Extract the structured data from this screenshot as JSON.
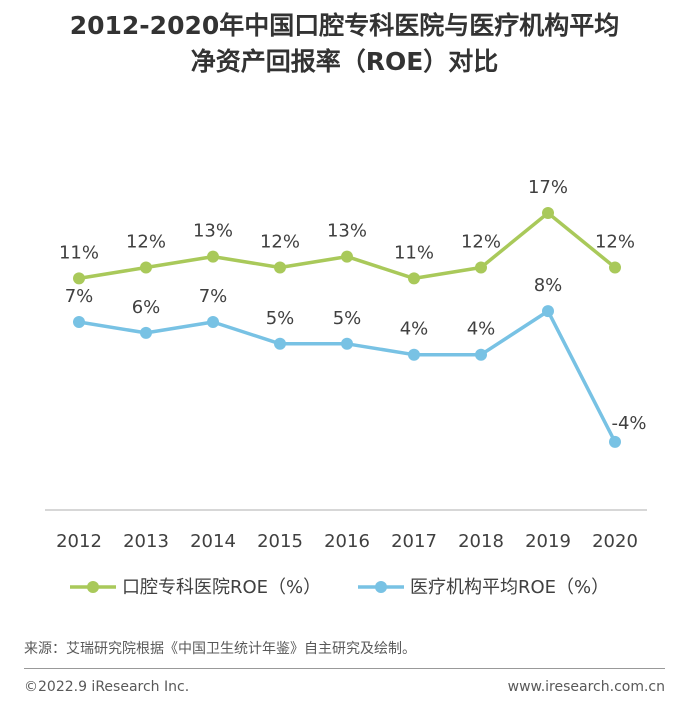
{
  "title": {
    "line1": "2012-2020年中国口腔专科医院与医疗机构平均",
    "line2": "净资产回报率（ROE）对比"
  },
  "chart_data": {
    "type": "line",
    "title": "2012-2020年中国口腔专科医院与医疗机构平均净资产回报率（ROE）对比",
    "categories": [
      "2012",
      "2013",
      "2014",
      "2015",
      "2016",
      "2017",
      "2018",
      "2019",
      "2020"
    ],
    "xlabel": "",
    "ylabel": "",
    "ylim": [
      -9,
      24
    ],
    "grid": false,
    "legend_position": "bottom",
    "series": [
      {
        "name": "口腔专科医院ROE（%）",
        "values": [
          11,
          12,
          13,
          12,
          13,
          11,
          12,
          17,
          12
        ],
        "labels": [
          "11%",
          "12%",
          "13%",
          "12%",
          "13%",
          "11%",
          "12%",
          "17%",
          "12%"
        ],
        "color": "#a9c95a"
      },
      {
        "name": "医疗机构平均ROE（%）",
        "values": [
          7,
          6,
          7,
          5,
          5,
          4,
          4,
          8,
          -4
        ],
        "labels": [
          "7%",
          "6%",
          "7%",
          "5%",
          "5%",
          "4%",
          "4%",
          "8%",
          "-4%"
        ],
        "color": "#78c2e4"
      }
    ]
  },
  "source": "来源：艾瑞研究院根据《中国卫生统计年鉴》自主研究及绘制。",
  "footer": {
    "copyright": "©2022.9 iResearch Inc.",
    "website": "www.iresearch.com.cn"
  }
}
